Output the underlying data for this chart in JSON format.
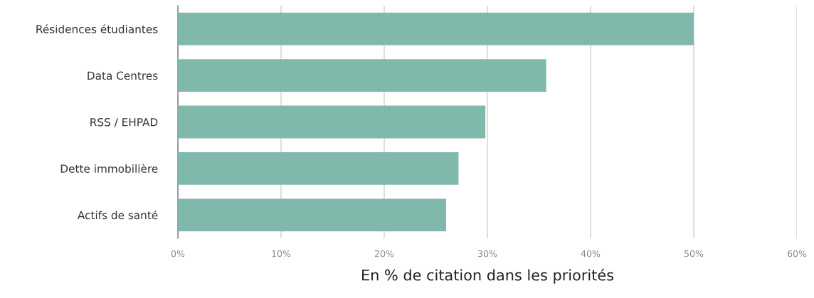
{
  "chart_data": {
    "type": "bar",
    "orientation": "horizontal",
    "categories": [
      "Résidences étudiantes",
      "Data Centres",
      "RSS / EHPAD",
      "Dette immobilière",
      "Actifs de santé"
    ],
    "values": [
      50,
      35.7,
      29.8,
      27.2,
      26.0
    ],
    "color": "#80b9ac",
    "xlim": [
      0,
      60
    ],
    "xticks": [
      {
        "value": 0,
        "label": "0%"
      },
      {
        "value": 10,
        "label": "10%"
      },
      {
        "value": 20,
        "label": "20%"
      },
      {
        "value": 30,
        "label": "30%"
      },
      {
        "value": 40,
        "label": "40%"
      },
      {
        "value": 50,
        "label": "50%"
      },
      {
        "value": 60,
        "label": "60%"
      }
    ],
    "xlabel": "En % de citation dans les priorités",
    "grid": "x"
  }
}
